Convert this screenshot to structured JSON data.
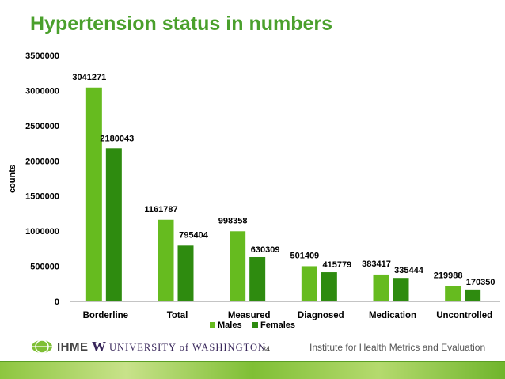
{
  "title": "Hypertension status in numbers",
  "chart_data": {
    "type": "bar",
    "categories": [
      "Borderline",
      "Total",
      "Measured",
      "Diagnosed",
      "Medication",
      "Uncontrolled"
    ],
    "series": [
      {
        "name": "Males",
        "values": [
          3041271,
          1161787,
          998358,
          501409,
          383417,
          219988
        ]
      },
      {
        "name": "Females",
        "values": [
          2180043,
          795404,
          630309,
          415779,
          335444,
          170350
        ]
      }
    ],
    "ylabel": "counts",
    "ylim": [
      0,
      3500000
    ],
    "yticks": [
      "0",
      "500000",
      "1000000",
      "1500000",
      "2000000",
      "2500000",
      "3000000",
      "3500000"
    ],
    "legend_position": "bottom",
    "grid": false,
    "colors": {
      "Males": "#66bb1f",
      "Females": "#2e8b0f"
    }
  },
  "footer": {
    "ihme_logo_text": "IHME",
    "uw_logo_letter": "W",
    "uw_text": "UNIVERSITY of WASHINGTON",
    "page_number": "34",
    "institute_text": "Institute for Health Metrics and Evaluation"
  },
  "colors": {
    "title": "#4aa02c",
    "accent": "#8dc63f"
  }
}
